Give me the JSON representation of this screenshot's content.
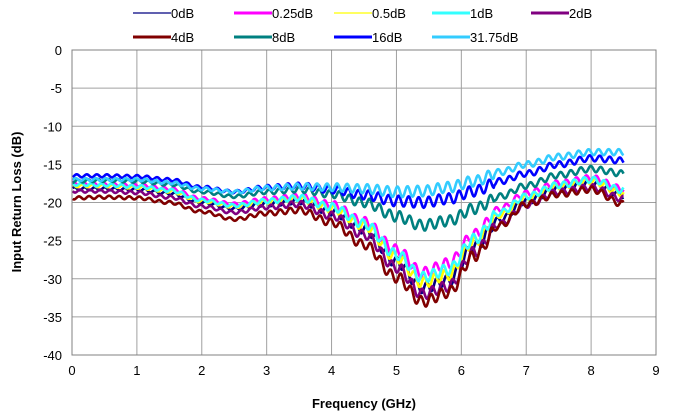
{
  "chart_data": {
    "type": "line",
    "title": "",
    "xlabel": "Frequency (GHz)",
    "ylabel": "Input Return Loss (dB)",
    "xlim": [
      0,
      9
    ],
    "ylim": [
      -40,
      0
    ],
    "xticks": [
      "0",
      "1",
      "2",
      "3",
      "4",
      "5",
      "6",
      "7",
      "8",
      "9"
    ],
    "yticks": [
      "0",
      "-5",
      "-10",
      "-15",
      "-20",
      "-25",
      "-30",
      "-35",
      "-40"
    ],
    "grid": true,
    "legend_position": "top",
    "series": [
      {
        "name": "0dB",
        "color": "#000080",
        "x": [
          0.01,
          0.5,
          1,
          1.5,
          2,
          2.5,
          3,
          3.5,
          4,
          4.5,
          5,
          5.4,
          5.8,
          6.2,
          6.6,
          7,
          7.5,
          8,
          8.5
        ],
        "y": [
          -18.2,
          -18.2,
          -18.3,
          -18.8,
          -20,
          -20.8,
          -20.2,
          -19.8,
          -21.2,
          -23.5,
          -27.8,
          -31.2,
          -30.2,
          -25.8,
          -22.2,
          -19.8,
          -18.2,
          -17.5,
          -19.0
        ]
      },
      {
        "name": "0.25dB",
        "color": "#ff00ff",
        "x": [
          0.01,
          0.5,
          1,
          1.5,
          2,
          2.5,
          3,
          3.5,
          4,
          4.5,
          5,
          5.4,
          5.8,
          6.2,
          6.6,
          7,
          7.5,
          8,
          8.5
        ],
        "y": [
          -17.5,
          -17.6,
          -17.7,
          -18.2,
          -19.5,
          -20.2,
          -19.6,
          -19.2,
          -20.3,
          -22.5,
          -26.2,
          -29.2,
          -28.0,
          -24.2,
          -20.8,
          -18.8,
          -17.5,
          -16.8,
          -18.2
        ]
      },
      {
        "name": "0.5dB",
        "color": "#ffff00",
        "x": [
          0.01,
          0.5,
          1,
          1.5,
          2,
          2.5,
          3,
          3.5,
          4,
          4.5,
          5,
          5.4,
          5.8,
          6.2,
          6.6,
          7,
          7.5,
          8,
          8.5
        ],
        "y": [
          -17.8,
          -17.8,
          -18.0,
          -18.5,
          -19.8,
          -20.5,
          -19.9,
          -19.5,
          -20.8,
          -23.0,
          -27.2,
          -30.5,
          -29.5,
          -25.2,
          -21.6,
          -19.4,
          -17.9,
          -17.2,
          -18.8
        ]
      },
      {
        "name": "1dB",
        "color": "#33ffff",
        "x": [
          0.01,
          0.5,
          1,
          1.5,
          2,
          2.5,
          3,
          3.5,
          4,
          4.5,
          5,
          5.4,
          5.8,
          6.2,
          6.6,
          7,
          7.5,
          8,
          8.5
        ],
        "y": [
          -17.6,
          -17.7,
          -17.9,
          -18.4,
          -19.7,
          -20.4,
          -19.8,
          -19.4,
          -20.6,
          -22.8,
          -26.8,
          -29.8,
          -28.8,
          -24.8,
          -21.3,
          -19.2,
          -17.7,
          -17.0,
          -18.4
        ]
      },
      {
        "name": "2dB",
        "color": "#800080",
        "x": [
          0.01,
          0.5,
          1,
          1.5,
          2,
          2.5,
          3,
          3.5,
          4,
          4.5,
          5,
          5.4,
          5.8,
          6.2,
          6.6,
          7,
          7.5,
          8,
          8.5
        ],
        "y": [
          -18.5,
          -18.5,
          -18.7,
          -19.3,
          -20.5,
          -21.3,
          -20.6,
          -20.2,
          -21.7,
          -24.2,
          -28.5,
          -32.0,
          -31.0,
          -26.5,
          -22.8,
          -20.3,
          -18.6,
          -18.0,
          -19.5
        ]
      },
      {
        "name": "4dB",
        "color": "#800000",
        "x": [
          0.01,
          0.5,
          1,
          1.5,
          2,
          2.5,
          3,
          3.5,
          4,
          4.5,
          5,
          5.4,
          5.8,
          6.2,
          6.6,
          7,
          7.5,
          8,
          8.5
        ],
        "y": [
          -19.4,
          -19.3,
          -19.4,
          -20.0,
          -21.2,
          -22.2,
          -21.4,
          -21.0,
          -22.6,
          -25.5,
          -29.8,
          -33.0,
          -31.8,
          -27.0,
          -23.0,
          -20.2,
          -18.9,
          -18.3,
          -20.2
        ]
      },
      {
        "name": "8dB",
        "color": "#008080",
        "x": [
          0.01,
          0.5,
          1,
          1.5,
          2,
          2.5,
          3,
          3.5,
          4,
          4.5,
          5,
          5.4,
          5.8,
          6.2,
          6.6,
          7,
          7.5,
          8,
          8.5
        ],
        "y": [
          -17.2,
          -17.1,
          -17.2,
          -17.6,
          -18.6,
          -19.2,
          -18.6,
          -18.3,
          -18.9,
          -20.0,
          -21.8,
          -23.0,
          -22.4,
          -20.8,
          -19.2,
          -17.8,
          -16.4,
          -15.6,
          -16.2
        ]
      },
      {
        "name": "16dB",
        "color": "#0000ff",
        "x": [
          0.01,
          0.5,
          1,
          1.5,
          2,
          2.5,
          3,
          3.5,
          4,
          4.5,
          5,
          5.4,
          5.8,
          6.2,
          6.6,
          7,
          7.5,
          8,
          8.5
        ],
        "y": [
          -16.5,
          -16.5,
          -16.6,
          -17.0,
          -18.0,
          -18.6,
          -18.0,
          -17.8,
          -18.3,
          -19.0,
          -19.8,
          -20.0,
          -19.5,
          -18.5,
          -17.2,
          -16.2,
          -15.0,
          -14.2,
          -14.5
        ]
      },
      {
        "name": "31.75dB",
        "color": "#33ccff",
        "x": [
          0.01,
          0.5,
          1,
          1.5,
          2,
          2.5,
          3,
          3.5,
          4,
          4.5,
          5,
          5.4,
          5.8,
          6.2,
          6.6,
          7,
          7.5,
          8,
          8.5
        ],
        "y": [
          -17.0,
          -17.0,
          -17.0,
          -17.4,
          -18.2,
          -18.6,
          -18.1,
          -17.9,
          -18.0,
          -18.2,
          -18.6,
          -18.5,
          -18.0,
          -17.2,
          -16.0,
          -15.0,
          -14.0,
          -13.4,
          -13.4
        ]
      }
    ]
  }
}
